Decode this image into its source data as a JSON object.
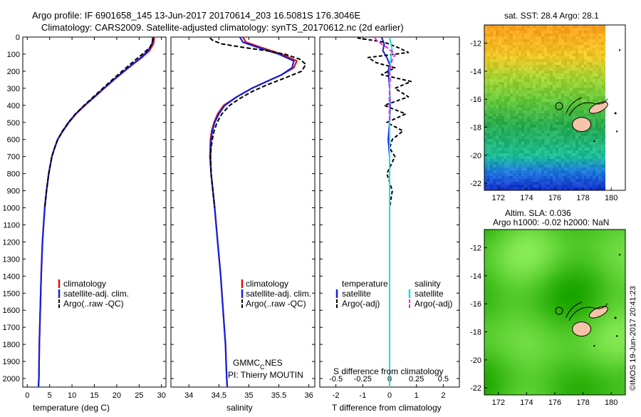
{
  "header": {
    "line1": "Argo profile: IF 6901658_145 13-Jun-2017 20170614_203 16.5081S 176.3046E",
    "line2": "Climatology: CARS2009. Satellite-adjusted climatology: synTS_20170612.nc (2d earlier)"
  },
  "side_text": "©IMOS 19-Jun-2017 20:41:23",
  "colors": {
    "climatology": "#dd1111",
    "satellite": "#1122dd",
    "argo": "#000000",
    "sat_salinity": "#22dddd",
    "argo_salinity": "#ee22dd",
    "land": "#f5c3a8"
  },
  "chart_data": [
    {
      "type": "line",
      "xlabel": "temperature (deg C)",
      "ylabel": "",
      "xlim": [
        -1,
        31
      ],
      "ylim": [
        0,
        2050
      ],
      "xticks": [
        0,
        5,
        10,
        15,
        20,
        25,
        30
      ],
      "yticks": [
        0,
        100,
        200,
        300,
        400,
        500,
        600,
        700,
        800,
        900,
        1000,
        1100,
        1200,
        1300,
        1400,
        1500,
        1600,
        1700,
        1800,
        1900,
        2000
      ],
      "legend": [
        "climatology",
        "satellite-adj. clim.",
        "Argo(..raw -QC)"
      ],
      "legend_position": "lower-middle",
      "series": [
        {
          "name": "climatology",
          "depth": [
            0,
            40,
            80,
            120,
            160,
            200,
            250,
            300,
            350,
            400,
            450,
            500,
            550,
            600,
            650,
            700,
            800,
            900,
            1000,
            1200,
            1400,
            1600,
            1800,
            2000,
            2050
          ],
          "values": [
            28.4,
            28.2,
            27.3,
            25.6,
            23.6,
            21.7,
            19.4,
            17.2,
            15.1,
            12.9,
            10.9,
            9.3,
            8.0,
            6.8,
            6.1,
            5.5,
            4.8,
            4.3,
            3.9,
            3.4,
            3.1,
            2.9,
            2.7,
            2.6,
            2.5
          ]
        },
        {
          "name": "satellite-adj. clim.",
          "depth": [
            0,
            40,
            80,
            120,
            160,
            200,
            250,
            300,
            350,
            400,
            450,
            500,
            550,
            600,
            650,
            700,
            800,
            900,
            1000,
            1200,
            1400,
            1600,
            1800,
            2000,
            2050
          ],
          "values": [
            28.1,
            27.9,
            27.0,
            25.4,
            23.5,
            21.6,
            19.3,
            17.1,
            15.0,
            12.8,
            10.8,
            9.2,
            7.9,
            6.8,
            6.1,
            5.5,
            4.8,
            4.3,
            3.9,
            3.4,
            3.1,
            2.9,
            2.7,
            2.6,
            2.5
          ]
        },
        {
          "name": "Argo(..raw -QC)",
          "depth": [
            5,
            30,
            60,
            90,
            120,
            160,
            200,
            250,
            300,
            350,
            400,
            450,
            500,
            550,
            600,
            650,
            700,
            800,
            900,
            1000
          ],
          "values": [
            28.1,
            28.0,
            27.4,
            26.2,
            24.8,
            23.0,
            21.2,
            19.0,
            16.9,
            14.8,
            12.7,
            10.8,
            9.2,
            7.9,
            6.8,
            6.1,
            5.5,
            4.8,
            4.3,
            3.9
          ]
        }
      ]
    },
    {
      "type": "line",
      "xlabel": "salinity",
      "xlim": [
        33.7,
        36.1
      ],
      "ylim": [
        0,
        2050
      ],
      "xticks": [
        34,
        34.5,
        35,
        35.5,
        36
      ],
      "legend": [
        "climatology",
        "satellite-adj. clim.",
        "Argo(..raw -QC)"
      ],
      "legend_position": "lower-middle",
      "annotations": [
        "GMMC",
        "C",
        "NES",
        "PI: Thierry MOUTIN"
      ],
      "series": [
        {
          "name": "climatology",
          "depth": [
            0,
            30,
            60,
            100,
            140,
            180,
            220,
            260,
            300,
            350,
            400,
            450,
            500,
            550,
            600,
            700,
            800,
            900,
            1000,
            1200,
            1400,
            1600,
            1800,
            2000,
            2050
          ],
          "values": [
            34.9,
            34.95,
            35.2,
            35.55,
            35.8,
            35.75,
            35.55,
            35.3,
            35.05,
            34.8,
            34.58,
            34.48,
            34.42,
            34.38,
            34.36,
            34.35,
            34.37,
            34.4,
            34.43,
            34.48,
            34.53,
            34.57,
            34.61,
            34.63,
            34.64
          ]
        },
        {
          "name": "satellite-adj. clim.",
          "depth": [
            0,
            30,
            60,
            100,
            140,
            180,
            220,
            260,
            300,
            350,
            400,
            450,
            500,
            550,
            600,
            700,
            800,
            900,
            1000,
            1200,
            1400,
            1600,
            1800,
            2000,
            2050
          ],
          "values": [
            34.85,
            34.9,
            35.15,
            35.5,
            35.75,
            35.72,
            35.55,
            35.3,
            35.05,
            34.8,
            34.6,
            34.5,
            34.43,
            34.39,
            34.37,
            34.36,
            34.37,
            34.4,
            34.43,
            34.48,
            34.53,
            34.57,
            34.61,
            34.63,
            34.64
          ]
        },
        {
          "name": "Argo(..raw -QC)",
          "depth": [
            5,
            20,
            40,
            60,
            80,
            100,
            130,
            160,
            200,
            240,
            280,
            320,
            360,
            400,
            450,
            500,
            550,
            600,
            650,
            700,
            800,
            900,
            1000
          ],
          "values": [
            34.35,
            34.4,
            34.55,
            34.9,
            35.3,
            35.6,
            35.85,
            35.95,
            35.88,
            35.6,
            35.3,
            35.05,
            34.85,
            34.68,
            34.55,
            34.47,
            34.42,
            34.39,
            34.37,
            34.36,
            34.37,
            34.4,
            34.43
          ]
        }
      ]
    },
    {
      "type": "line",
      "xlabel": "T difference from climatology",
      "xlabel_top": "S difference from climatology",
      "xlim": [
        -2.6,
        2.6
      ],
      "ylim": [
        0,
        2050
      ],
      "xticks": [
        -2,
        -1,
        0,
        1,
        2
      ],
      "xticks_top": [
        "-0.5",
        "-0.25",
        "0",
        "0.25",
        "0.5"
      ],
      "legend_groups": [
        {
          "title": "temperature",
          "items": [
            "satellite",
            "Argo(-adj)"
          ]
        },
        {
          "title": "salinity",
          "items": [
            "satellite",
            "Argo(-adj)"
          ]
        }
      ],
      "series": [
        {
          "name": "temperature satellite",
          "depth": [
            0,
            40,
            80,
            120,
            160,
            200,
            300,
            400,
            500,
            600,
            700,
            800,
            1000,
            1200,
            1500,
            2000,
            2050
          ],
          "values": [
            -0.3,
            -0.2,
            -0.25,
            -0.1,
            0.0,
            -0.05,
            0.0,
            0.02,
            0.0,
            -0.05,
            0.0,
            0.0,
            0.0,
            0.0,
            0.0,
            0.0,
            0.0
          ]
        },
        {
          "name": "temperature Argo(-adj)",
          "depth": [
            5,
            30,
            60,
            90,
            120,
            150,
            180,
            220,
            260,
            300,
            350,
            400,
            450,
            500,
            550,
            600,
            650,
            700,
            800,
            900,
            1000
          ],
          "values": [
            -1.2,
            -0.2,
            0.3,
            0.7,
            -0.8,
            -0.5,
            0.2,
            -0.3,
            0.8,
            0.2,
            0.7,
            -0.2,
            0.6,
            -0.1,
            0.5,
            0.1,
            0.0,
            0.2,
            -0.1,
            0.1,
            0.0
          ]
        },
        {
          "name": "salinity satellite",
          "depth": [
            0,
            40,
            80,
            120,
            160,
            200,
            300,
            400,
            500,
            600,
            700,
            800,
            1000,
            1500,
            2000,
            2050
          ],
          "values": [
            0.0,
            0.05,
            0.1,
            0.05,
            0.02,
            0.0,
            0.0,
            0.0,
            0.0,
            0.0,
            0.0,
            0.0,
            0.0,
            0.0,
            0.0,
            0.0
          ]
        },
        {
          "name": "salinity Argo(-adj)",
          "depth": [
            5,
            20,
            40,
            60,
            80,
            100,
            130,
            160,
            200,
            250,
            300,
            400,
            500
          ],
          "values": [
            -0.55,
            -0.48,
            -0.3,
            -0.1,
            0.05,
            0.22,
            0.1,
            0.05,
            0.0,
            0.02,
            0.0,
            -0.01,
            0.0
          ]
        }
      ]
    },
    {
      "type": "heatmap",
      "title": "sat. SST: 28.4  Argo: 28.1",
      "xlim": [
        171,
        181
      ],
      "ylim": [
        -22.5,
        -10.7
      ],
      "xticks": [
        172,
        174,
        176,
        178,
        180
      ],
      "yticks": [
        -12,
        -14,
        -16,
        -18,
        -20,
        -22
      ],
      "marker": {
        "lon": 176.3,
        "lat": -16.5
      }
    },
    {
      "type": "heatmap",
      "title": "Altim. SLA: 0.036",
      "subtitle": "Argo h1000: -0.02  h2000: NaN",
      "xlim": [
        171,
        181
      ],
      "ylim": [
        -22.5,
        -10.7
      ],
      "xticks": [
        172,
        174,
        176,
        178,
        180
      ],
      "yticks": [
        -12,
        -14,
        -16,
        -18,
        -20,
        -22
      ],
      "marker": {
        "lon": 176.3,
        "lat": -16.5
      }
    }
  ]
}
